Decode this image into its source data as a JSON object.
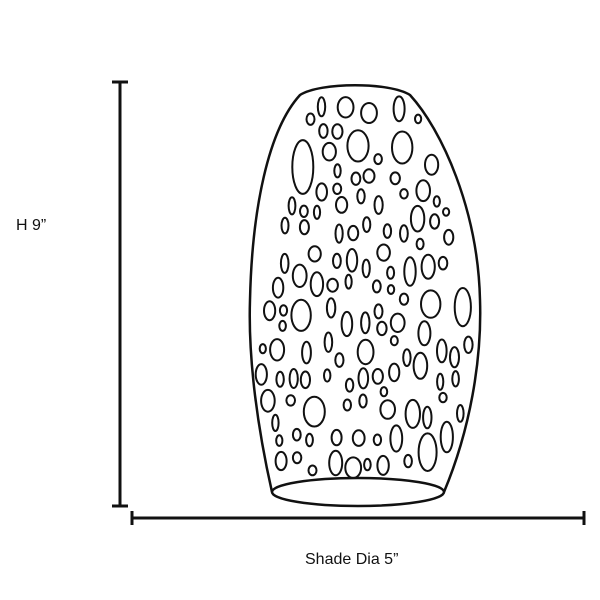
{
  "dimensions": {
    "height_label": "H 9”",
    "width_label": "Shade Dia 5”"
  },
  "colors": {
    "line": "#111111",
    "background": "#ffffff"
  }
}
